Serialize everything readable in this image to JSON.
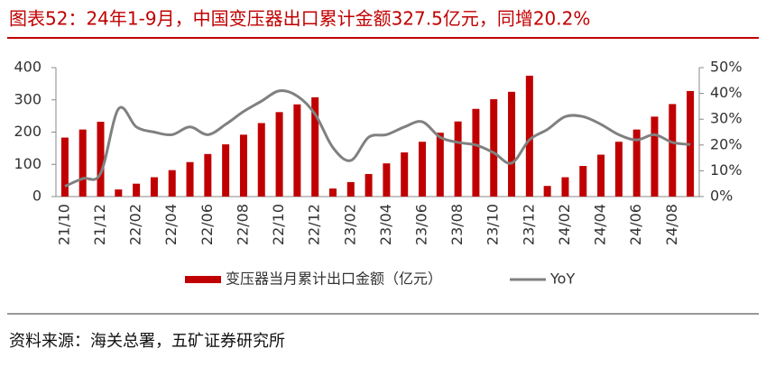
{
  "chart_data": {
    "type": "bar-line",
    "title": "图表52：24年1-9月，中国变压器出口累计金额327.5亿元，同增20.2%",
    "source": "资料来源：海关总署，五矿证券研究所",
    "categories": [
      "21/10",
      null,
      "21/12",
      null,
      "22/02",
      null,
      "22/04",
      null,
      "22/06",
      null,
      "22/08",
      null,
      "22/10",
      null,
      "22/12",
      null,
      "23/02",
      null,
      "23/04",
      null,
      "23/06",
      null,
      "23/08",
      null,
      "23/10",
      null,
      "23/12",
      null,
      "24/02",
      null,
      "24/04",
      null,
      "24/06",
      null,
      "24/08",
      null
    ],
    "series": [
      {
        "name": "变压器当月累计出口金额（亿元）",
        "type": "bar",
        "color": "#c00000",
        "values": [
          183,
          208,
          232,
          22,
          40,
          60,
          82,
          107,
          132,
          162,
          192,
          228,
          262,
          286,
          308,
          25,
          45,
          70,
          103,
          137,
          170,
          198,
          233,
          272,
          302,
          325,
          375,
          33,
          60,
          95,
          130,
          170,
          208,
          248,
          287,
          327.5
        ]
      },
      {
        "name": "YoY",
        "type": "line",
        "axis": "y2",
        "color": "#808080",
        "values": [
          4,
          7,
          9,
          34,
          27,
          25,
          24,
          27,
          24,
          28,
          33,
          37,
          41,
          39,
          32,
          19,
          14,
          23,
          24,
          27,
          29,
          23,
          21,
          20,
          17,
          13,
          22,
          26,
          31,
          31,
          28,
          24,
          22,
          24,
          21,
          20.2
        ]
      }
    ],
    "ylim": [
      0,
      400
    ],
    "yticks": [
      0,
      100,
      200,
      300,
      400
    ],
    "y2lim": [
      0,
      50
    ],
    "y2ticks": [
      {
        "value": 0,
        "label": "0%"
      },
      {
        "value": 10,
        "label": "10%"
      },
      {
        "value": 20,
        "label": "20%"
      },
      {
        "value": 30,
        "label": "30%"
      },
      {
        "value": 40,
        "label": "40%"
      },
      {
        "value": 50,
        "label": "50%"
      }
    ],
    "legend": "bottom"
  }
}
